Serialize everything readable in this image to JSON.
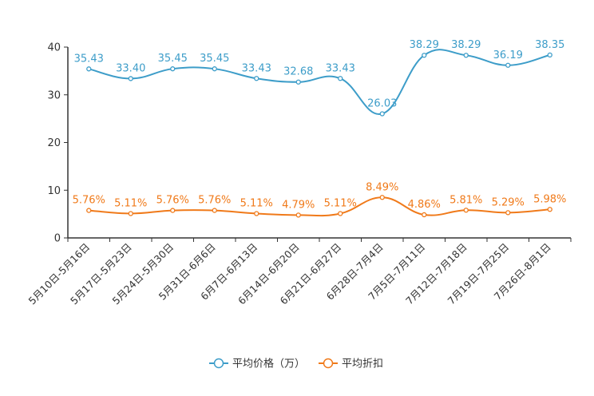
{
  "chart_data": {
    "type": "line",
    "categories": [
      "5月10日-5月16日",
      "5月17日-5月23日",
      "5月24日-5月30日",
      "5月31日-6月6日",
      "6月7日-6月13日",
      "6月14日-6月20日",
      "6月21日-6月27日",
      "6月28日-7月4日",
      "7月5日-7月11日",
      "7月12日-7月18日",
      "7月19日-7月25日",
      "7月26日-8月1日"
    ],
    "ylim": [
      0,
      40
    ],
    "yticks": [
      "0",
      "10",
      "20",
      "30",
      "40"
    ],
    "series": [
      {
        "name": "平均价格（万）",
        "color": "#3d9dc9",
        "values": [
          35.43,
          33.4,
          35.45,
          35.45,
          33.43,
          32.68,
          33.43,
          26.03,
          38.29,
          38.29,
          36.19,
          38.35
        ],
        "labels": [
          "35.43",
          "33.40",
          "35.45",
          "35.45",
          "33.43",
          "32.68",
          "33.43",
          "26.03",
          "38.29",
          "38.29",
          "36.19",
          "38.35"
        ]
      },
      {
        "name": "平均折扣",
        "color": "#f07a1a",
        "values": [
          5.76,
          5.11,
          5.76,
          5.76,
          5.11,
          4.79,
          5.11,
          8.49,
          4.86,
          5.81,
          5.29,
          5.98
        ],
        "labels": [
          "5.76%",
          "5.11%",
          "5.76%",
          "5.76%",
          "5.11%",
          "4.79%",
          "5.11%",
          "8.49%",
          "4.86%",
          "5.81%",
          "5.29%",
          "5.98%"
        ]
      }
    ],
    "legend_position": "bottom-center"
  }
}
